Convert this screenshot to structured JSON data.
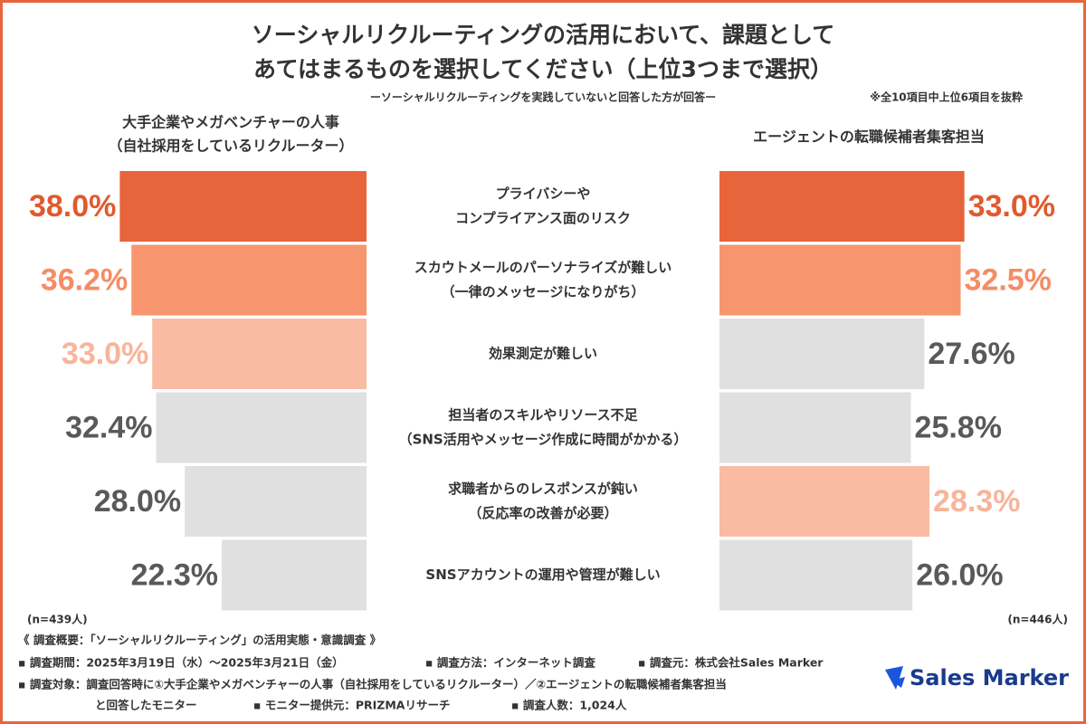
{
  "chart_data": {
    "type": "butterfly-bar",
    "title": [
      "ソーシャルリクルーティングの活用において、課題として",
      "あてはまるものを選択してください（上位3つまで選択）"
    ],
    "subtitle": "ーソーシャルリクルーティングを実践していないと回答した方が回答ー",
    "note": "※全10項目中上位6項目を抜粋",
    "categories": [
      [
        "プライバシーや",
        "コンプライアンス面のリスク"
      ],
      [
        "スカウトメールのパーソナライズが難しい",
        "（一律のメッセージになりがち）"
      ],
      [
        "効果測定が難しい"
      ],
      [
        "担当者のスキルやリソース不足",
        "（SNS活用やメッセージ作成に時間がかかる）"
      ],
      [
        "求職者からのレスポンスが鈍い",
        "（反応率の改善が必要）"
      ],
      [
        "SNSアカウントの運用や管理が難しい"
      ]
    ],
    "xlim": [
      0,
      40
    ],
    "series": [
      {
        "name": [
          "大手企業やメガベンチャーの人事",
          "（自社採用をしているリクルーター）"
        ],
        "side": "left",
        "n_label": "(n=439人)",
        "values": [
          38.0,
          36.2,
          33.0,
          32.4,
          28.0,
          22.3
        ],
        "value_labels": [
          "38.0%",
          "36.2%",
          "33.0%",
          "32.4%",
          "28.0%",
          "22.3%"
        ],
        "colors": [
          "#e8643a",
          "#f7956f",
          "#f9bba2",
          "#e0e0e0",
          "#e0e0e0",
          "#e0e0e0"
        ],
        "label_colors": [
          "#e05a2e",
          "#f58c66",
          "#f9b49a",
          "#595959",
          "#595959",
          "#595959"
        ]
      },
      {
        "name": [
          "エージェントの転職候補者集客担当"
        ],
        "side": "right",
        "n_label": "(n=446人)",
        "values": [
          33.0,
          32.5,
          27.6,
          25.8,
          28.3,
          26.0
        ],
        "value_labels": [
          "33.0%",
          "32.5%",
          "27.6%",
          "25.8%",
          "28.3%",
          "26.0%"
        ],
        "colors": [
          "#e8643a",
          "#f7956f",
          "#e0e0e0",
          "#e0e0e0",
          "#f9bba2",
          "#e0e0e0"
        ],
        "label_colors": [
          "#e05a2e",
          "#f58c66",
          "#595959",
          "#595959",
          "#f9b49a",
          "#595959"
        ]
      }
    ]
  },
  "footer": [
    "《 調査概要：「ソーシャルリクルーティング」の活用実態・意識調査 》",
    "▪ 調査期間：2025年3月19日（水）〜2025年3月21日（金）",
    "▪ 調査方法：インターネット調査",
    "▪ 調査元：株式会社Sales Marker",
    "▪ 調査対象：調査回答時に①大手企業やメガベンチャーの人事（自社採用をしているリクルーター）／②エージェントの転職候補者集客担当",
    "と回答したモニター",
    "▪ モニター提供元：PRIZMAリサーチ",
    "▪ 調査人数：1,024人"
  ],
  "logo": "Sales Marker"
}
